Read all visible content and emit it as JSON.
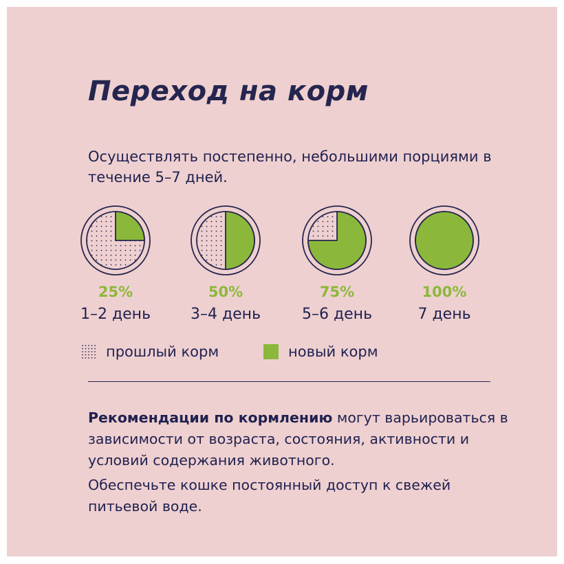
{
  "title": "Переход на корм",
  "intro": "Осуществлять постепенно, небольшими порциями в течение 5–7 дней.",
  "colors": {
    "background": "#efd0d0",
    "new_food": "#8bb83a",
    "text": "#25264f"
  },
  "stages": [
    {
      "percent_label": "25%",
      "new_fraction": 0.25,
      "days": "1–2 день"
    },
    {
      "percent_label": "50%",
      "new_fraction": 0.5,
      "days": "3–4 день"
    },
    {
      "percent_label": "75%",
      "new_fraction": 0.75,
      "days": "5–6 день"
    },
    {
      "percent_label": "100%",
      "new_fraction": 1.0,
      "days": "7 день"
    }
  ],
  "legend": {
    "old": "прошлый корм",
    "new": "новый корм"
  },
  "recommendation": {
    "bold": "Рекомендации по кормлению",
    "rest": " могут варьироваться в зависимости от возраста, состояния, активности и условий содержания животного.",
    "water": "Обеспечьте кошке постоянный доступ к свежей питьевой воде."
  }
}
